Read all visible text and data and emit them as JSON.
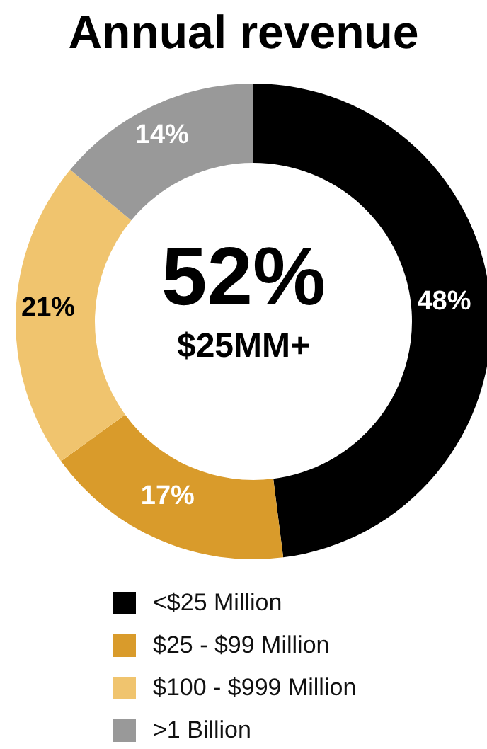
{
  "chart_data": {
    "type": "donut",
    "title": "Annual revenue",
    "categories": [
      "<$25 Million",
      "$25 - $99 Million",
      "$100 - $999 Million",
      ">1 Billion"
    ],
    "values": [
      48,
      17,
      21,
      14
    ],
    "colors": [
      "#000000",
      "#d99b2b",
      "#f0c46e",
      "#999999"
    ],
    "value_labels": [
      "48%",
      "17%",
      "21%",
      "14%"
    ],
    "legend": "bottom",
    "annotations": [
      "52%",
      "$25MM+"
    ]
  }
}
